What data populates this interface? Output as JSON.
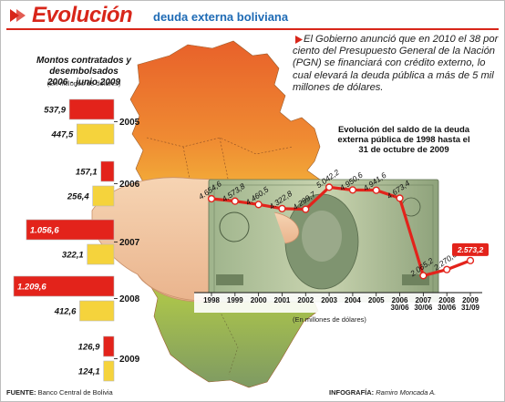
{
  "header": {
    "title": "Evolución",
    "subtitle": "deuda externa boliviana"
  },
  "left_panel": {
    "title_line1": "Montos contratados y desembolsados",
    "title_line2": "2006 - junio 2009",
    "units": "(En millones de dólares)"
  },
  "note": {
    "text": "El Gobierno anunció que en 2010 el 38 por ciento del Presupuesto General de la Nación (PGN) se financiará con crédito externo, lo cual elevará la deuda pública a más de 5 mil millones de dólares."
  },
  "line_chart": {
    "title_line1": "Evolución del saldo de la deuda",
    "title_line2": "externa pública de 1998 hasta el",
    "title_line3": "31 de octubre de 2009",
    "units": "(En millones de dólares)"
  },
  "chart_data": [
    {
      "type": "bar",
      "orientation": "horizontal",
      "categories": [
        "2005",
        "2006",
        "2007",
        "2008",
        "2009"
      ],
      "series": [
        {
          "name": "",
          "color": "#e3231b",
          "values": [
            537.9,
            157.1,
            1056.6,
            1209.6,
            126.9
          ],
          "labels": [
            "537,9",
            "157,1",
            "1.056,6",
            "1.209,6",
            "126,9"
          ]
        },
        {
          "name": "",
          "color": "#f5d33c",
          "values": [
            447.5,
            256.4,
            322.1,
            412.6,
            124.1
          ],
          "labels": [
            "447,5",
            "256,4",
            "322,1",
            "412,6",
            "124,1"
          ]
        }
      ]
    },
    {
      "type": "line",
      "categories": [
        "1998",
        "1999",
        "2000",
        "2001",
        "2002",
        "2003",
        "2004",
        "2005",
        "2006 30/06",
        "2007 30/06",
        "2008 30/06",
        "2009 31/09"
      ],
      "x_tick_lines": [
        [
          "1998"
        ],
        [
          "1999"
        ],
        [
          "2000"
        ],
        [
          "2001"
        ],
        [
          "2002"
        ],
        [
          "2003"
        ],
        [
          "2004"
        ],
        [
          "2005"
        ],
        [
          "2006",
          "30/06"
        ],
        [
          "2007",
          "30/06"
        ],
        [
          "2008",
          "30/06"
        ],
        [
          "2009",
          "31/09"
        ]
      ],
      "values": [
        4654.6,
        4573.8,
        4460.5,
        4322.8,
        4299.7,
        5042.2,
        4950.6,
        4941.6,
        4673.4,
        2065.2,
        2270.6,
        2573.2
      ],
      "labels": [
        "4.654,6",
        "4.573,8",
        "4.460,5",
        "4.322,8",
        "4.299,7",
        "5.042,2",
        "4.950,6",
        "4.941,6",
        "4.673,4",
        "2.065,2",
        "2.270,6",
        "2.573,2"
      ],
      "xlabel": "(En millones de dólares)",
      "line_color": "#e3231b",
      "highlight_color": "#e3231b"
    }
  ],
  "footer": {
    "source_label": "FUENTE:",
    "source_text": "Banco Central de Bolivia",
    "credit_label": "INFOGRAFÍA:",
    "credit_text": "Ramiro Moncada A."
  },
  "colors": {
    "accent": "#d8261a",
    "subtitle": "#1f6bb5",
    "map_top": "#e8612a",
    "map_mid": "#f3b33a",
    "map_low": "#a9c24c",
    "map_bottom": "#7e9a63"
  },
  "icons": {
    "title_icon": "arrow-icon",
    "note_icon": "arrow-icon"
  }
}
